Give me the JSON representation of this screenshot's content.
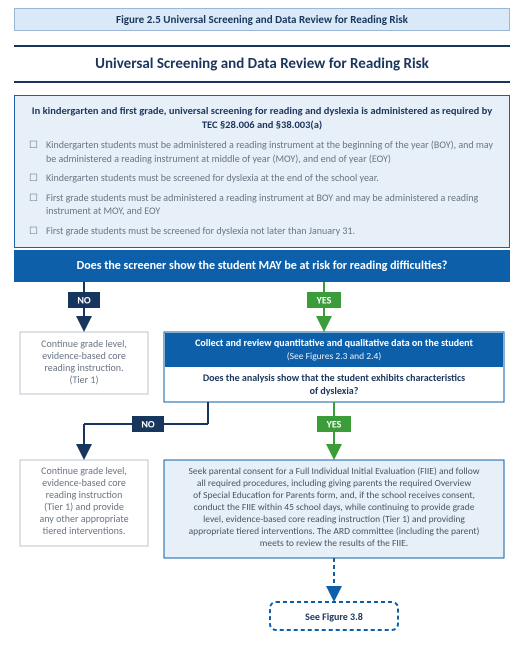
{
  "colors": {
    "navy": "#17365d",
    "blue": "#0d5faa",
    "green": "#3a9d3a",
    "lightblue_fill": "#e7f0f9",
    "box_border": "#9ab8d6",
    "grey_text": "#6b7684"
  },
  "figure_label": "Figure 2.5 Universal Screening and Data Review for Reading Risk",
  "main_title": "Universal Screening and Data Review for Reading Risk",
  "intro_lead": "In kindergarten and first grade, universal screening for reading and dyslexia is administered as required by TEC §28.006 and §38.003(a)",
  "intro_items": [
    "Kindergarten students must be administered a reading instrument at the beginning of the year (BOY), and may be administered a reading instrument at middle of year (MOY), and end of year (EOY)",
    "Kindergarten students must be screened for dyslexia at the end of the school year.",
    "First grade students must be administered a reading instrument at BOY and may be administered a reading instrument at MOY, and EOY",
    "First grade students must be screened for dyslexia not later than January 31."
  ],
  "q1": "Does the screener show the student MAY be at risk for reading difficulties?",
  "labels": {
    "no": "NO",
    "yes": "YES"
  },
  "no_path_box": [
    "Continue grade level,",
    "evidence-based core",
    "reading instruction.",
    "(Tier 1)"
  ],
  "collect_box_l1": "Collect and review quantitative and qualitative data on the student",
  "collect_box_l2": "(See Figures 2.3 and 2.4)",
  "q2_l1": "Does the analysis show that the student exhibits characteristics",
  "q2_l2": "of dyslexia?",
  "no_path2_box": [
    "Continue grade level,",
    "evidence-based core",
    "reading instruction",
    "(Tier 1) and provide",
    "any other appropriate",
    "tiered interventions."
  ],
  "outcome_box": [
    "Seek parental consent for a Full Individual Initial Evaluation (FIIE) and follow",
    "all required procedures, including giving parents the required Overview",
    "of Special Education for Parents form, and, if the school receives consent,",
    "conduct the FIIE within 45 school days, while continuing to provide grade",
    "level, evidence-based core reading instruction (Tier 1) and providing",
    "appropriate tiered interventions. The ARD committee (including the parent)",
    "meets to review the results of the FIIE."
  ],
  "see_figure": "See Figure 3.8"
}
